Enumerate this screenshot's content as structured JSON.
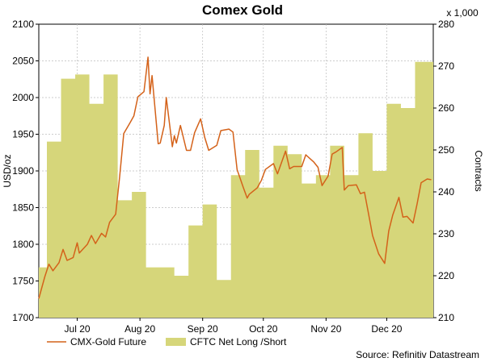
{
  "chart_data": {
    "type": "line",
    "title": "Comex Gold",
    "source": "Source: Refinitiv Datastream",
    "x_ticks": [
      "Jul 20",
      "Aug 20",
      "Sep 20",
      "Oct 20",
      "Nov 20",
      "Dec 20"
    ],
    "x_range": [
      "2020-06-12",
      "2020-12-24"
    ],
    "x_tick_dates": [
      "2020-07-01",
      "2020-08-01",
      "2020-09-01",
      "2020-10-01",
      "2020-11-01",
      "2020-12-01"
    ],
    "y_left": {
      "label": "USD/oz",
      "ylim": [
        1700,
        2100
      ],
      "ticks": [
        1700,
        1750,
        1800,
        1850,
        1900,
        1950,
        2000,
        2050,
        2100
      ]
    },
    "y_right": {
      "label": "Contracts",
      "multiplier": "x 1,000",
      "ylim": [
        210,
        280
      ],
      "ticks": [
        210,
        220,
        230,
        240,
        250,
        260,
        270,
        280
      ]
    },
    "grid": true,
    "legend_position": "bottom",
    "series": [
      {
        "name": "CMX-Gold Future",
        "axis": "left",
        "kind": "line",
        "color": "#d4621a",
        "x": [
          "2020-06-12",
          "2020-06-15",
          "2020-06-17",
          "2020-06-19",
          "2020-06-22",
          "2020-06-24",
          "2020-06-26",
          "2020-06-29",
          "2020-07-01",
          "2020-07-02",
          "2020-07-06",
          "2020-07-08",
          "2020-07-10",
          "2020-07-13",
          "2020-07-15",
          "2020-07-17",
          "2020-07-20",
          "2020-07-22",
          "2020-07-24",
          "2020-07-27",
          "2020-07-29",
          "2020-07-31",
          "2020-08-03",
          "2020-08-05",
          "2020-08-06",
          "2020-08-07",
          "2020-08-10",
          "2020-08-11",
          "2020-08-13",
          "2020-08-14",
          "2020-08-17",
          "2020-08-18",
          "2020-08-19",
          "2020-08-21",
          "2020-08-24",
          "2020-08-26",
          "2020-08-28",
          "2020-08-31",
          "2020-09-02",
          "2020-09-04",
          "2020-09-08",
          "2020-09-10",
          "2020-09-14",
          "2020-09-16",
          "2020-09-18",
          "2020-09-21",
          "2020-09-23",
          "2020-09-24",
          "2020-09-28",
          "2020-09-30",
          "2020-10-02",
          "2020-10-06",
          "2020-10-08",
          "2020-10-12",
          "2020-10-14",
          "2020-10-16",
          "2020-10-20",
          "2020-10-22",
          "2020-10-26",
          "2020-10-28",
          "2020-10-30",
          "2020-11-02",
          "2020-11-04",
          "2020-11-06",
          "2020-11-09",
          "2020-11-10",
          "2020-11-12",
          "2020-11-16",
          "2020-11-18",
          "2020-11-20",
          "2020-11-23",
          "2020-11-24",
          "2020-11-27",
          "2020-11-30",
          "2020-12-02",
          "2020-12-04",
          "2020-12-07",
          "2020-12-09",
          "2020-12-11",
          "2020-12-14",
          "2020-12-16",
          "2020-12-18",
          "2020-12-21",
          "2020-12-23"
        ],
        "values": [
          1726,
          1756,
          1773,
          1764,
          1775,
          1793,
          1778,
          1782,
          1802,
          1788,
          1800,
          1812,
          1801,
          1815,
          1810,
          1830,
          1841,
          1893,
          1951,
          1965,
          1975,
          2001,
          2008,
          2055,
          2005,
          2030,
          1937,
          1938,
          1962,
          2000,
          1933,
          1948,
          1938,
          1962,
          1928,
          1928,
          1952,
          1971,
          1946,
          1928,
          1935,
          1955,
          1957,
          1953,
          1902,
          1878,
          1863,
          1868,
          1877,
          1887,
          1902,
          1910,
          1896,
          1927,
          1903,
          1906,
          1906,
          1922,
          1912,
          1905,
          1880,
          1893,
          1923,
          1926,
          1932,
          1874,
          1880,
          1881,
          1869,
          1871,
          1827,
          1812,
          1787,
          1774,
          1818,
          1840,
          1864,
          1837,
          1838,
          1829,
          1855,
          1884,
          1889,
          1888
        ]
      },
      {
        "name": "CFTC Net Long /Short",
        "axis": "right",
        "kind": "area",
        "color": "#d6d67a",
        "x": [
          "2020-06-12",
          "2020-06-16",
          "2020-06-23",
          "2020-06-30",
          "2020-07-07",
          "2020-07-14",
          "2020-07-21",
          "2020-07-28",
          "2020-08-04",
          "2020-08-11",
          "2020-08-18",
          "2020-08-25",
          "2020-09-01",
          "2020-09-08",
          "2020-09-15",
          "2020-09-22",
          "2020-09-29",
          "2020-10-06",
          "2020-10-13",
          "2020-10-20",
          "2020-10-27",
          "2020-11-03",
          "2020-11-10",
          "2020-11-17",
          "2020-11-24",
          "2020-12-01",
          "2020-12-08",
          "2020-12-15",
          "2020-12-22"
        ],
        "values": [
          222,
          252,
          267,
          268,
          261,
          268,
          238,
          240,
          222,
          222,
          220,
          232,
          237,
          219,
          244,
          250,
          241,
          251,
          249,
          242,
          244,
          251,
          244,
          254,
          245,
          261,
          260,
          271,
          271
        ]
      }
    ]
  }
}
